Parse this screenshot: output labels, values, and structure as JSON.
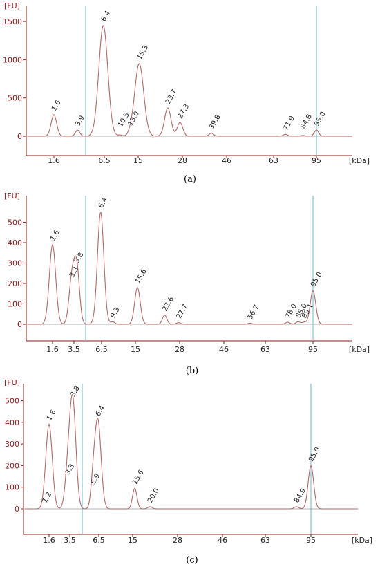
{
  "chart_data": [
    {
      "type": "line",
      "panel": "(a)",
      "ylabel": "[FU]",
      "xlabel": "[kDa]",
      "yticks": [
        0,
        500,
        1000,
        1500
      ],
      "ylim": [
        -80,
        1600
      ],
      "x_ticks": [
        "1.6",
        "6.5",
        "15",
        "28",
        "46",
        "63",
        "95"
      ],
      "peaks": [
        {
          "label": "1.6",
          "x": 1.6,
          "y": 280,
          "color": "#1a7a1a"
        },
        {
          "label": "3.9",
          "x": 3.9,
          "y": 80,
          "color": "#222222"
        },
        {
          "label": "6.4",
          "x": 6.4,
          "y": 1450,
          "color": "#222222"
        },
        {
          "label": "10.5",
          "x": 10.5,
          "y": 15,
          "color": "#222222"
        },
        {
          "label": "13.0",
          "x": 13.0,
          "y": 30,
          "color": "#222222"
        },
        {
          "label": "15.3",
          "x": 15.3,
          "y": 950,
          "color": "#222222"
        },
        {
          "label": "23.7",
          "x": 23.7,
          "y": 370,
          "color": "#222222"
        },
        {
          "label": "27.3",
          "x": 27.3,
          "y": 180,
          "color": "#222222"
        },
        {
          "label": "39.8",
          "x": 39.8,
          "y": 40,
          "color": "#222222"
        },
        {
          "label": "71.9",
          "x": 71.9,
          "y": 25,
          "color": "#222222"
        },
        {
          "label": "84.8",
          "x": 84.8,
          "y": 10,
          "color": "#222222"
        },
        {
          "label": "95.0",
          "x": 95.0,
          "y": 80,
          "color": "#6633cc"
        }
      ]
    },
    {
      "type": "line",
      "panel": "(b)",
      "ylabel": "[FU]",
      "xlabel": "[kDa]",
      "yticks": [
        0,
        100,
        200,
        300,
        400,
        500
      ],
      "ylim": [
        -30,
        590
      ],
      "x_ticks": [
        "1.6",
        "3.5",
        "6.5",
        "15",
        "28",
        "46",
        "63",
        "95"
      ],
      "peaks": [
        {
          "label": "1.6",
          "x": 1.6,
          "y": 390,
          "color": "#1a7a1a"
        },
        {
          "label": "3.3",
          "x": 3.3,
          "y": 210,
          "color": "#222222"
        },
        {
          "label": "3.8",
          "x": 3.8,
          "y": 280,
          "color": "#222222"
        },
        {
          "label": "6.4",
          "x": 6.4,
          "y": 550,
          "color": "#222222"
        },
        {
          "label": "9.3",
          "x": 9.3,
          "y": 12,
          "color": "#222222"
        },
        {
          "label": "15.6",
          "x": 15.6,
          "y": 180,
          "color": "#222222"
        },
        {
          "label": "23.6",
          "x": 23.6,
          "y": 45,
          "color": "#222222"
        },
        {
          "label": "27.7",
          "x": 27.7,
          "y": 8,
          "color": "#222222"
        },
        {
          "label": "56.7",
          "x": 56.7,
          "y": 5,
          "color": "#222222"
        },
        {
          "label": "78.0",
          "x": 78.0,
          "y": 10,
          "color": "#222222"
        },
        {
          "label": "85.0",
          "x": 85.0,
          "y": 12,
          "color": "#222222"
        },
        {
          "label": "89.1",
          "x": 89.1,
          "y": 10,
          "color": "#222222"
        },
        {
          "label": "95.0",
          "x": 95.0,
          "y": 165,
          "color": "#6633cc"
        }
      ]
    },
    {
      "type": "line",
      "panel": "(c)",
      "ylabel": "[FU]",
      "xlabel": "[kDa]",
      "yticks": [
        0,
        100,
        200,
        300,
        400,
        500
      ],
      "ylim": [
        -100,
        540
      ],
      "x_ticks": [
        "1.6",
        "3.5",
        "6.5",
        "15",
        "28",
        "46",
        "63",
        "95"
      ],
      "peaks": [
        {
          "label": "1.2",
          "x": 1.2,
          "y": 10,
          "color": "#222222"
        },
        {
          "label": "1.6",
          "x": 1.6,
          "y": 390,
          "color": "#1a7a1a"
        },
        {
          "label": "3.3",
          "x": 3.3,
          "y": 140,
          "color": "#222222"
        },
        {
          "label": "3.8",
          "x": 3.8,
          "y": 500,
          "color": "#222222"
        },
        {
          "label": "5.9",
          "x": 5.9,
          "y": 95,
          "color": "#222222"
        },
        {
          "label": "6.4",
          "x": 6.4,
          "y": 410,
          "color": "#222222"
        },
        {
          "label": "15.6",
          "x": 15.6,
          "y": 95,
          "color": "#222222"
        },
        {
          "label": "20.0",
          "x": 20.0,
          "y": 10,
          "color": "#222222"
        },
        {
          "label": "84.9",
          "x": 84.9,
          "y": 10,
          "color": "#222222"
        },
        {
          "label": "95.0",
          "x": 95.0,
          "y": 200,
          "color": "#6633cc"
        }
      ]
    }
  ],
  "colors": {
    "trace": "#b06a6a",
    "axis": "#8b1a1a",
    "marker_line": "#6fb7c9"
  }
}
